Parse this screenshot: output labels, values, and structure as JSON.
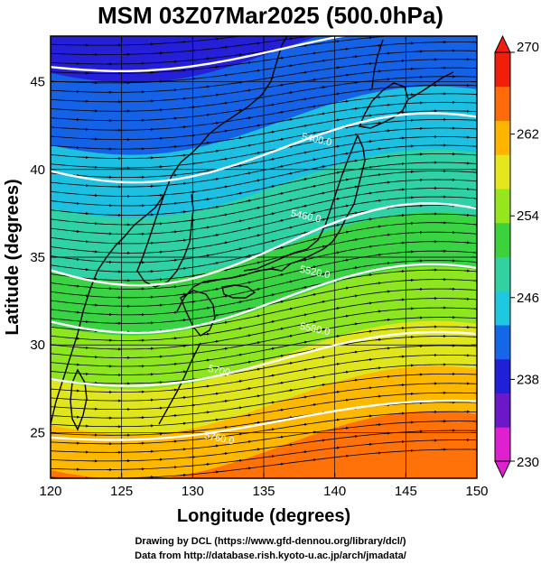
{
  "title": "MSM 03Z07Mar2025 (500.0hPa)",
  "map": {
    "xlabel": "Longitude (degrees)",
    "ylabel": "Latitude  (degrees)",
    "xlim": [
      120,
      150
    ],
    "ylim": [
      22.4,
      47.6
    ],
    "xticks": [
      "120",
      "125",
      "130",
      "135",
      "140",
      "145",
      "150"
    ],
    "yticks": [
      "25",
      "30",
      "35",
      "40",
      "45"
    ],
    "contour_labels": [
      "5400.0",
      "5460.0",
      "5520.0",
      "5580.0",
      "5700",
      "5760.0"
    ]
  },
  "colorbar": {
    "min": 230,
    "max": 270,
    "labels": [
      "230",
      "238",
      "246",
      "254",
      "262",
      "270"
    ],
    "colors": [
      "#e020d0",
      "#6a18c8",
      "#2020d8",
      "#1468e8",
      "#1ec8e0",
      "#32d2a0",
      "#3cd23c",
      "#96e61e",
      "#e6e61e",
      "#ffb400",
      "#ff6a0a",
      "#f01e0a"
    ]
  },
  "credits": {
    "line1": "Drawing by DCL (https://www.gfd-dennou.org/library/dcl/)",
    "line2": "Data from http://database.rish.kyoto-u.ac.jp/arch/jmadata/"
  }
}
